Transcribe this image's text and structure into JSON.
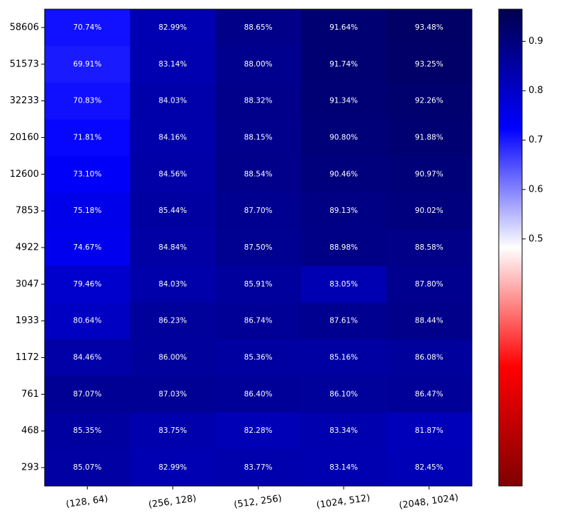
{
  "chart_data": {
    "type": "heatmap",
    "title": "",
    "xlabel": "",
    "ylabel": "",
    "x_categories": [
      "(128, 64)",
      "(256, 128)",
      "(512, 256)",
      "(1024, 512)",
      "(2048, 1024)"
    ],
    "y_categories": [
      "58606",
      "51573",
      "32233",
      "20160",
      "12600",
      "7853",
      "4922",
      "3047",
      "1933",
      "1172",
      "761",
      "468",
      "293"
    ],
    "values": [
      [
        0.7074,
        0.8299,
        0.8865,
        0.9164,
        0.9348
      ],
      [
        0.6991,
        0.8314,
        0.88,
        0.9174,
        0.9325
      ],
      [
        0.7083,
        0.8403,
        0.8832,
        0.9134,
        0.9226
      ],
      [
        0.7181,
        0.8416,
        0.8815,
        0.908,
        0.9188
      ],
      [
        0.731,
        0.8456,
        0.8854,
        0.9046,
        0.9097
      ],
      [
        0.7518,
        0.8544,
        0.877,
        0.8913,
        0.9002
      ],
      [
        0.7467,
        0.8484,
        0.875,
        0.8898,
        0.8858
      ],
      [
        0.7946,
        0.8403,
        0.8591,
        0.8305,
        0.878
      ],
      [
        0.8064,
        0.8623,
        0.8674,
        0.8761,
        0.8844
      ],
      [
        0.8446,
        0.86,
        0.8536,
        0.8516,
        0.8608
      ],
      [
        0.8707,
        0.8703,
        0.864,
        0.861,
        0.8647
      ],
      [
        0.8535,
        0.8375,
        0.8228,
        0.8334,
        0.8187
      ],
      [
        0.8507,
        0.8299,
        0.8377,
        0.8314,
        0.8245
      ]
    ],
    "cell_labels": [
      [
        "70.74%",
        "82.99%",
        "88.65%",
        "91.64%",
        "93.48%"
      ],
      [
        "69.91%",
        "83.14%",
        "88.00%",
        "91.74%",
        "93.25%"
      ],
      [
        "70.83%",
        "84.03%",
        "88.32%",
        "91.34%",
        "92.26%"
      ],
      [
        "71.81%",
        "84.16%",
        "88.15%",
        "90.80%",
        "91.88%"
      ],
      [
        "73.10%",
        "84.56%",
        "88.54%",
        "90.46%",
        "90.97%"
      ],
      [
        "75.18%",
        "85.44%",
        "87.70%",
        "89.13%",
        "90.02%"
      ],
      [
        "74.67%",
        "84.84%",
        "87.50%",
        "88.98%",
        "88.58%"
      ],
      [
        "79.46%",
        "84.03%",
        "85.91%",
        "83.05%",
        "87.80%"
      ],
      [
        "80.64%",
        "86.23%",
        "86.74%",
        "87.61%",
        "88.44%"
      ],
      [
        "84.46%",
        "86.00%",
        "85.36%",
        "85.16%",
        "86.08%"
      ],
      [
        "87.07%",
        "87.03%",
        "86.40%",
        "86.10%",
        "86.47%"
      ],
      [
        "85.35%",
        "83.75%",
        "82.28%",
        "83.34%",
        "81.87%"
      ],
      [
        "85.07%",
        "82.99%",
        "83.77%",
        "83.14%",
        "82.45%"
      ]
    ],
    "colormap": "seismic_r",
    "color_stops": [
      "#800000",
      "#ff0000",
      "#ffffff",
      "#0000ff",
      "#000050"
    ],
    "vmin": 0.0,
    "vmax": 0.965,
    "colorbar": {
      "ticks": [
        0.5,
        0.6,
        0.7,
        0.8,
        0.9
      ],
      "tick_labels": [
        "0.5",
        "0.6",
        "0.7",
        "0.8",
        "0.9"
      ],
      "visible_range": [
        0.0,
        0.965
      ]
    },
    "grid": false,
    "legend": "colorbar-right"
  }
}
